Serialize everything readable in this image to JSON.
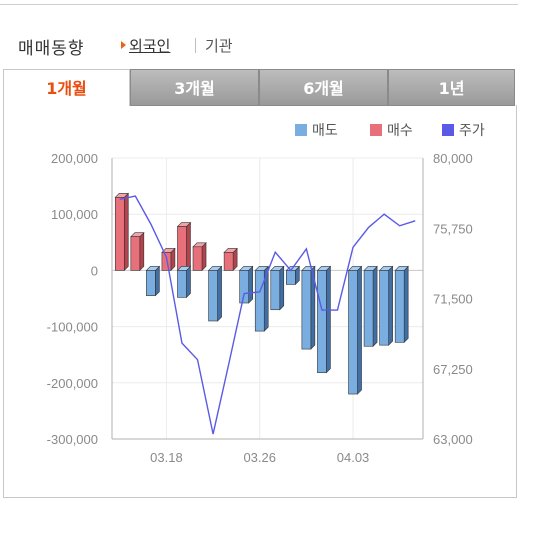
{
  "header": {
    "title": "매매동향",
    "link_foreign": "외국인",
    "link_institution": "기관"
  },
  "tabs": [
    {
      "label": "1개월",
      "active": true
    },
    {
      "label": "3개월",
      "active": false
    },
    {
      "label": "6개월",
      "active": false
    },
    {
      "label": "1년",
      "active": false
    }
  ],
  "legend": {
    "sell": {
      "label": "매도",
      "color": "#7aaee0"
    },
    "buy": {
      "label": "매수",
      "color": "#e8707a"
    },
    "price": {
      "label": "주가",
      "color": "#5a5ae6"
    }
  },
  "chart_data": {
    "type": "bar",
    "left_axis": {
      "min": -300000,
      "max": 200000,
      "ticks": [
        "200,000",
        "100,000",
        "0",
        "-100,000",
        "-200,000",
        "-300,000"
      ],
      "tick_values": [
        200000,
        100000,
        0,
        -100000,
        -200000,
        -300000
      ]
    },
    "right_axis": {
      "min": 63000,
      "max": 80000,
      "ticks": [
        "80,000",
        "75,750",
        "71,500",
        "67,250",
        "63,000"
      ],
      "tick_values": [
        80000,
        75750,
        71500,
        67250,
        63000
      ]
    },
    "x_ticks": [
      {
        "label": "03.18",
        "index": 3
      },
      {
        "label": "03.26",
        "index": 9
      },
      {
        "label": "04.03",
        "index": 15
      }
    ],
    "grid": true,
    "days": 20,
    "series": [
      {
        "name": "매도",
        "type": "bar",
        "values": [
          0,
          0,
          -45000,
          0,
          -48000,
          0,
          -90000,
          0,
          -58000,
          -108000,
          -70000,
          -25000,
          -140000,
          -182000,
          0,
          -220000,
          -135000,
          -133000,
          -128000,
          0
        ]
      },
      {
        "name": "매수",
        "type": "bar",
        "values": [
          130000,
          60000,
          0,
          32000,
          78000,
          42000,
          0,
          32000,
          0,
          0,
          0,
          0,
          0,
          0,
          0,
          0,
          0,
          0,
          0,
          0
        ]
      },
      {
        "name": "주가",
        "type": "line",
        "values": [
          77500,
          77700,
          76000,
          74000,
          68800,
          67800,
          63300,
          67500,
          71800,
          71900,
          74300,
          73200,
          74500,
          70800,
          70800,
          74600,
          75800,
          76600,
          75900,
          76200
        ]
      }
    ]
  }
}
